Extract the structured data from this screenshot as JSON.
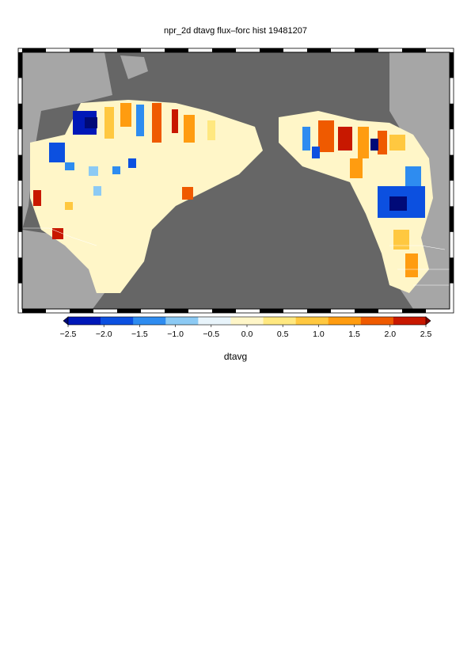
{
  "title": "npr_2d dtavg flux–forc hist 19481207",
  "colorbar": {
    "label": "dtavg",
    "ticks": [
      "−2.5",
      "−2.0",
      "−1.5",
      "−1.0",
      "−0.5",
      "0.0",
      "0.5",
      "1.0",
      "1.5",
      "2.0",
      "2.5"
    ],
    "colors": [
      "#000a78",
      "#0018b8",
      "#0c50e0",
      "#2e8cf0",
      "#8ccaf4",
      "#e8f4fb",
      "#fff6c8",
      "#ffe880",
      "#ffc840",
      "#ff9c10",
      "#ef5a00",
      "#c81800",
      "#820000"
    ]
  },
  "map": {
    "ocean_color": "#666666",
    "land_color": "#a6a6a6"
  }
}
